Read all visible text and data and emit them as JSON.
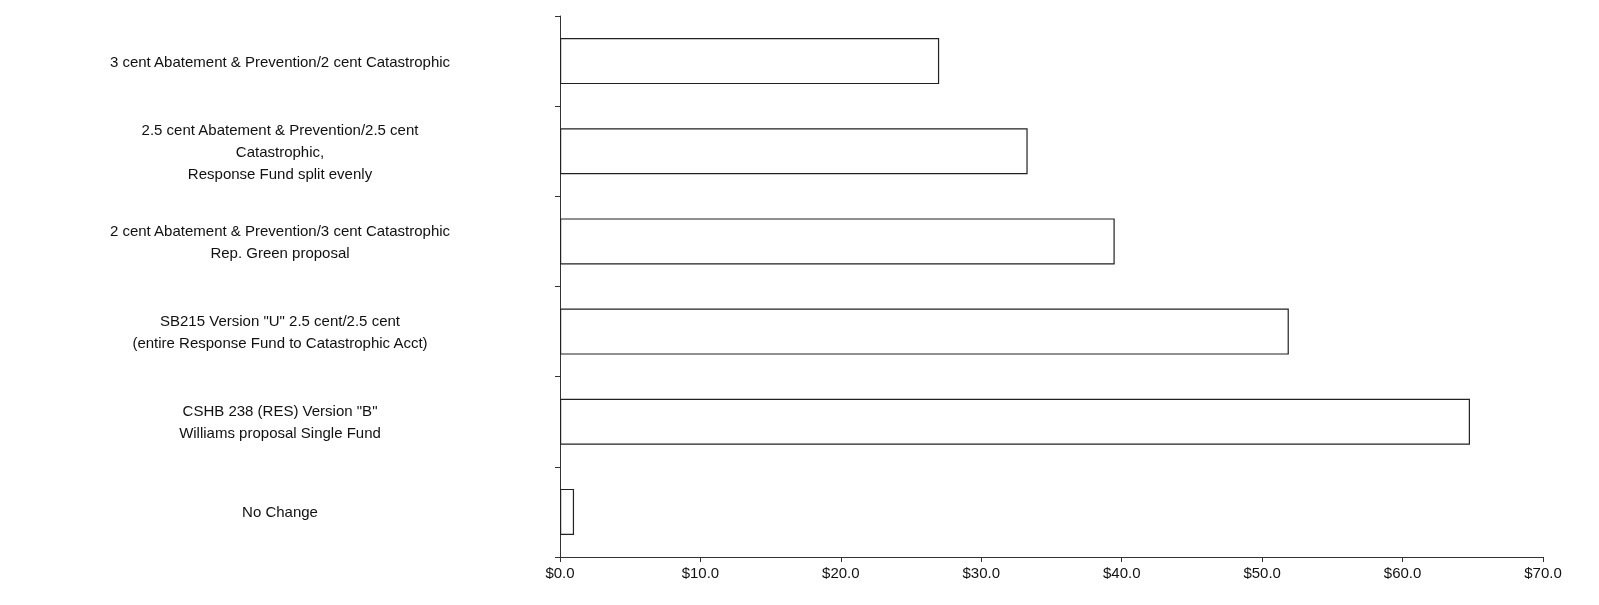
{
  "chart_data": {
    "type": "bar",
    "orientation": "horizontal",
    "categories": [
      "3 cent Abatement & Prevention/2 cent Catastrophic",
      "2.5 cent Abatement & Prevention/2.5 cent\nCatastrophic,\nResponse Fund split evenly",
      "2 cent Abatement & Prevention/3 cent Catastrophic\nRep. Green proposal",
      "SB215 Version \"U\" 2.5 cent/2.5 cent\n(entire Response Fund to Catastrophic Acct)",
      "CSHB 238 (RES) Version \"B\"\nWilliams proposal Single Fund",
      "No Change"
    ],
    "values": [
      27.0,
      33.3,
      39.5,
      51.9,
      64.8,
      1.0
    ],
    "color": "#ffffff",
    "xlim": [
      0,
      70
    ],
    "xticks": [
      {
        "value": 0,
        "label": "$0.0"
      },
      {
        "value": 10,
        "label": "$10.0"
      },
      {
        "value": 20,
        "label": "$20.0"
      },
      {
        "value": 30,
        "label": "$30.0"
      },
      {
        "value": 40,
        "label": "$40.0"
      },
      {
        "value": 50,
        "label": "$50.0"
      },
      {
        "value": 60,
        "label": "$60.0"
      },
      {
        "value": 70,
        "label": "$70.0"
      }
    ]
  }
}
